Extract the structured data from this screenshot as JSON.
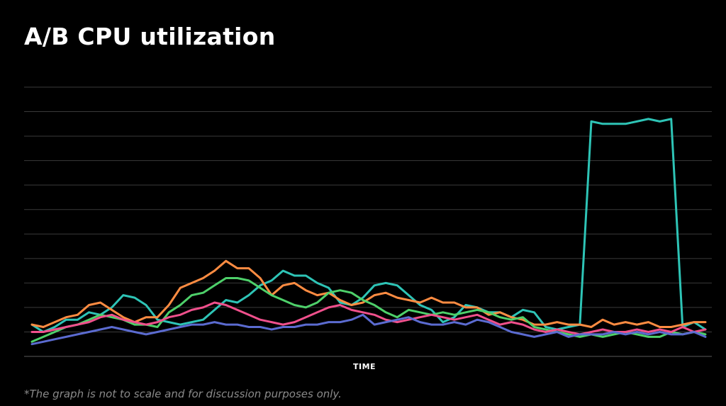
{
  "chart_data": {
    "type": "line",
    "title": "A/B CPU utilization",
    "xlabel": "TIME",
    "ylabel": "",
    "footnote": "*The graph is not to scale and for discussion purposes only.",
    "grid": true,
    "ylim": [
      0,
      11
    ],
    "series": [
      {
        "color": "#2ec4b6",
        "values": [
          1.3,
          1.0,
          1.2,
          1.5,
          1.5,
          1.8,
          1.7,
          2.0,
          2.5,
          2.4,
          2.1,
          1.5,
          1.4,
          1.3,
          1.4,
          1.5,
          1.9,
          2.3,
          2.2,
          2.5,
          2.9,
          3.1,
          3.5,
          3.3,
          3.3,
          3.0,
          2.8,
          2.2,
          2.1,
          2.4,
          2.9,
          3.0,
          2.9,
          2.5,
          2.1,
          1.9,
          1.4,
          1.6,
          2.1,
          2.0,
          1.8,
          1.8,
          1.6,
          1.9,
          1.8,
          1.2,
          1.1,
          1.2,
          1.3,
          9.6,
          9.5,
          9.5,
          9.5,
          9.6,
          9.7,
          9.6,
          9.7,
          1.2,
          1.4,
          1.1
        ]
      },
      {
        "color": "#ff8c42",
        "values": [
          1.3,
          1.2,
          1.4,
          1.6,
          1.7,
          2.1,
          2.2,
          1.9,
          1.6,
          1.4,
          1.6,
          1.6,
          2.1,
          2.8,
          3.0,
          3.2,
          3.5,
          3.9,
          3.6,
          3.6,
          3.2,
          2.5,
          2.9,
          3.0,
          2.7,
          2.5,
          2.6,
          2.3,
          2.1,
          2.2,
          2.5,
          2.6,
          2.4,
          2.3,
          2.2,
          2.4,
          2.2,
          2.2,
          2.0,
          2.0,
          1.7,
          1.8,
          1.6,
          1.5,
          1.3,
          1.3,
          1.4,
          1.3,
          1.3,
          1.2,
          1.5,
          1.3,
          1.4,
          1.3,
          1.4,
          1.2,
          1.2,
          1.3,
          1.4,
          1.4
        ]
      },
      {
        "color": "#4ed06a",
        "values": [
          0.6,
          0.8,
          1.0,
          1.2,
          1.3,
          1.5,
          1.7,
          1.6,
          1.5,
          1.3,
          1.3,
          1.2,
          1.8,
          2.1,
          2.5,
          2.6,
          2.9,
          3.2,
          3.2,
          3.1,
          2.8,
          2.5,
          2.3,
          2.1,
          2.0,
          2.2,
          2.6,
          2.7,
          2.6,
          2.3,
          2.1,
          1.8,
          1.6,
          1.9,
          1.8,
          1.7,
          1.8,
          1.7,
          1.8,
          1.9,
          1.8,
          1.6,
          1.5,
          1.6,
          1.2,
          1.1,
          1.0,
          0.9,
          0.8,
          0.9,
          0.8,
          0.9,
          1.0,
          0.9,
          0.8,
          0.8,
          1.0,
          0.9,
          1.0,
          0.9
        ]
      },
      {
        "color": "#f0508c",
        "values": [
          1.0,
          1.0,
          1.1,
          1.2,
          1.3,
          1.4,
          1.6,
          1.7,
          1.5,
          1.4,
          1.3,
          1.4,
          1.6,
          1.7,
          1.9,
          2.0,
          2.2,
          2.1,
          1.9,
          1.7,
          1.5,
          1.4,
          1.3,
          1.4,
          1.6,
          1.8,
          2.0,
          2.1,
          1.9,
          1.8,
          1.7,
          1.5,
          1.4,
          1.5,
          1.6,
          1.7,
          1.6,
          1.5,
          1.6,
          1.7,
          1.5,
          1.3,
          1.4,
          1.3,
          1.1,
          1.0,
          1.1,
          1.0,
          0.9,
          1.0,
          1.1,
          1.0,
          1.0,
          1.1,
          1.0,
          1.1,
          1.0,
          1.2,
          1.0,
          1.1
        ]
      },
      {
        "color": "#5b6bd0",
        "values": [
          0.5,
          0.6,
          0.7,
          0.8,
          0.9,
          1.0,
          1.1,
          1.2,
          1.1,
          1.0,
          0.9,
          1.0,
          1.1,
          1.2,
          1.3,
          1.3,
          1.4,
          1.3,
          1.3,
          1.2,
          1.2,
          1.1,
          1.2,
          1.2,
          1.3,
          1.3,
          1.4,
          1.4,
          1.5,
          1.7,
          1.3,
          1.4,
          1.5,
          1.6,
          1.4,
          1.3,
          1.3,
          1.4,
          1.3,
          1.5,
          1.4,
          1.2,
          1.0,
          0.9,
          0.8,
          0.9,
          1.0,
          0.8,
          0.9,
          0.9,
          0.9,
          1.0,
          0.9,
          1.0,
          0.9,
          1.0,
          0.9,
          0.9,
          1.0,
          0.8
        ]
      }
    ]
  }
}
